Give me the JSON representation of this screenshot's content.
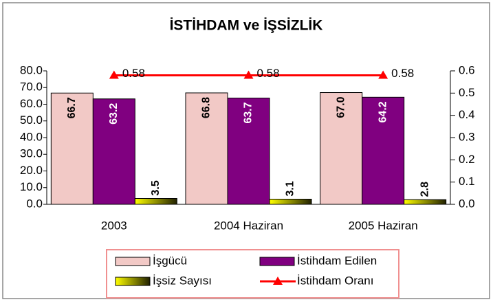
{
  "chart_data": {
    "type": "bar",
    "title": "İSTİHDAM ve İŞSİZLİK",
    "categories": [
      "2003",
      "2004 Haziran",
      "2005 Haziran"
    ],
    "series": [
      {
        "name": "İşgücü",
        "color": "#f2c9c6",
        "values": [
          66.7,
          66.8,
          67.0
        ],
        "value_labels": [
          "66.7",
          "66.8",
          "67.0"
        ]
      },
      {
        "name": "İstihdam Edilen",
        "color": "#800080",
        "values": [
          63.2,
          63.7,
          64.2
        ]
      },
      {
        "name": "İşsiz Sayısı",
        "color": "#ffff00",
        "values": [
          3.5,
          3.1,
          2.8
        ]
      },
      {
        "name": "İstihdam Oranı",
        "color": "#ff0000",
        "type": "line",
        "axis": "y2",
        "values": [
          0.58,
          0.58,
          0.58
        ]
      }
    ],
    "ylim": [
      0,
      80
    ],
    "yticks": [
      {
        "value": 0,
        "label": "0.0"
      },
      {
        "value": 10,
        "label": "10.0"
      },
      {
        "value": 20,
        "label": "20.0"
      },
      {
        "value": 30,
        "label": "30.0"
      },
      {
        "value": 40,
        "label": "40.0"
      },
      {
        "value": 50,
        "label": "50.0"
      },
      {
        "value": 60,
        "label": "60.0"
      },
      {
        "value": 70,
        "label": "70.0"
      },
      {
        "value": 80,
        "label": "80.0"
      }
    ],
    "y2lim": [
      0,
      0.6
    ],
    "y2ticks": [
      {
        "value": 0,
        "label": "0.0"
      },
      0.1,
      0.2,
      0.3,
      0.4,
      0.5,
      0.6
    ],
    "legend": "bottom"
  }
}
